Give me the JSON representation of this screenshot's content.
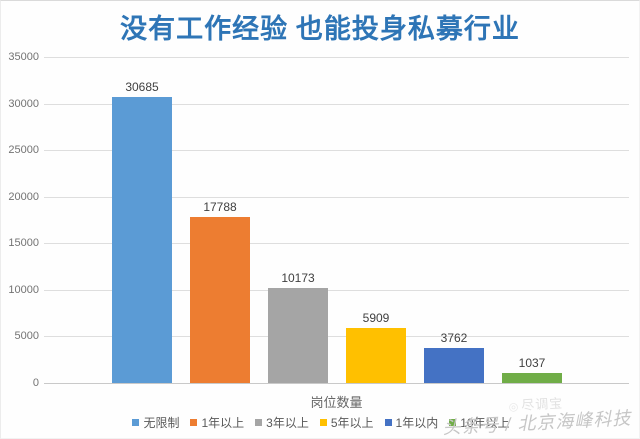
{
  "title": {
    "text": "没有工作经验 也能投身私募行业",
    "color": "#2e75b6"
  },
  "chart_data": {
    "type": "bar",
    "title": "没有工作经验 也能投身私募行业",
    "categories": [
      "无限制",
      "1年以上",
      "3年以上",
      "5年以上",
      "1年以内",
      "10年以上"
    ],
    "values": [
      30685,
      17788,
      10173,
      5909,
      3762,
      1037
    ],
    "data_labels": [
      "30685",
      "17788",
      "10173",
      "5909",
      "3762",
      "1037"
    ],
    "bar_colors": [
      "#5B9BD5",
      "#ED7D31",
      "#A5A5A5",
      "#FFC000",
      "#4472C4",
      "#70AD47"
    ],
    "xlabel": "岗位数量",
    "ylabel": "",
    "ylim": [
      0,
      35000
    ],
    "yticks": [
      0,
      5000,
      10000,
      15000,
      20000,
      25000,
      30000,
      35000
    ],
    "grid": true,
    "legend_position": "bottom"
  },
  "watermark": {
    "logo_icon": "jindiaobao-logo-icon",
    "logo_text": "尽调宝",
    "line": "头条号 / 北京海峰科技"
  }
}
